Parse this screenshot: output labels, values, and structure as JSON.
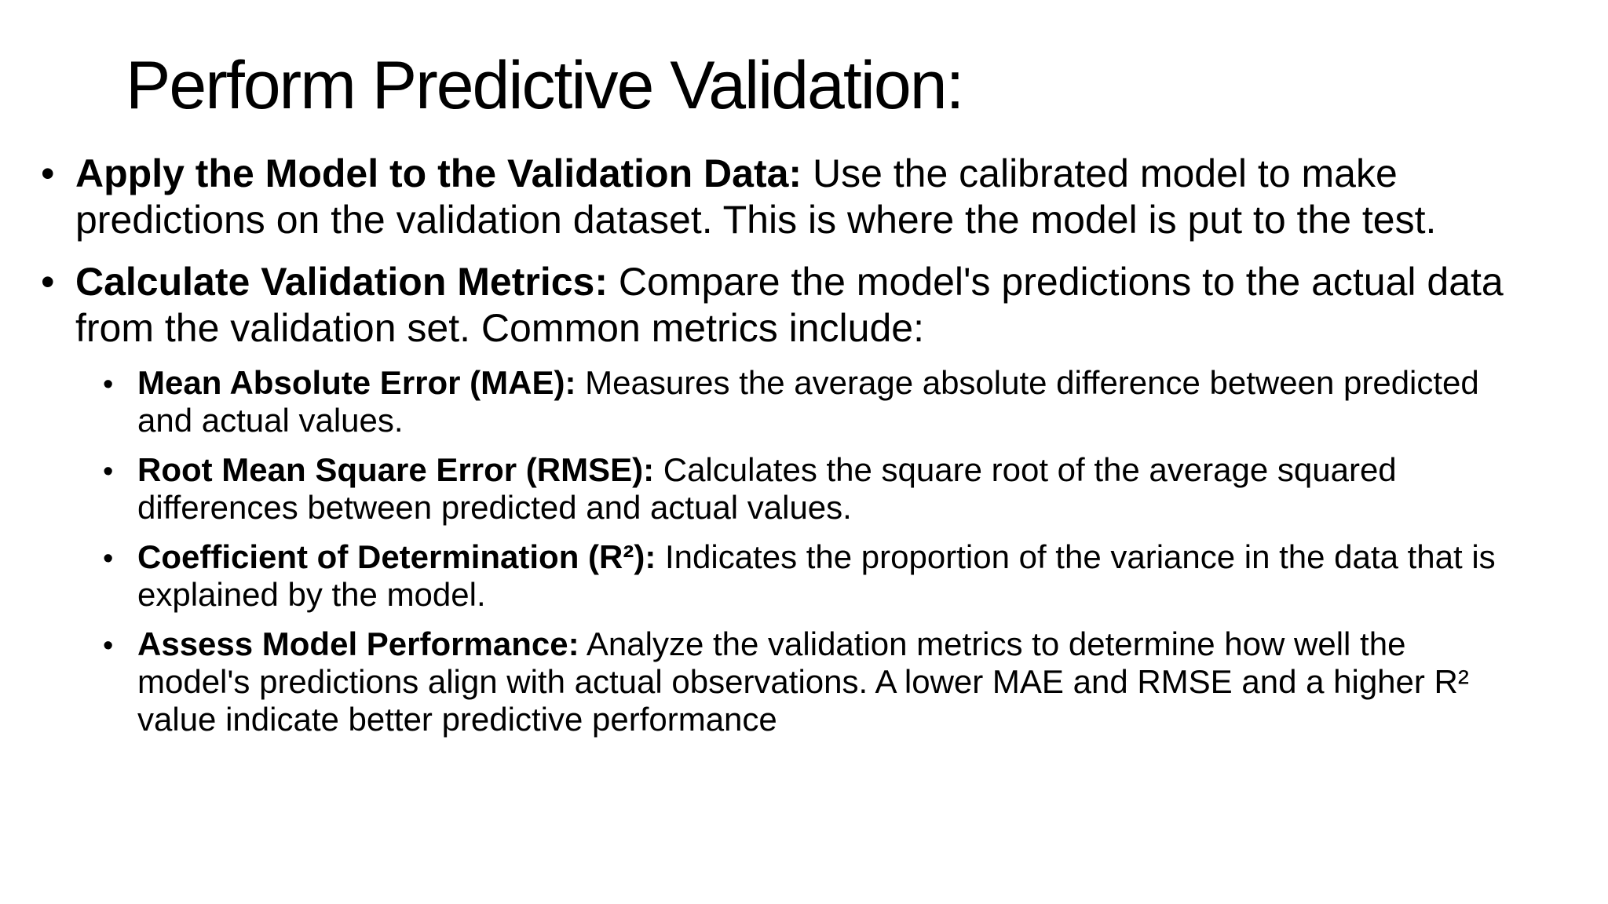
{
  "slide": {
    "title": "Perform Predictive Validation:",
    "bullet_char": "•",
    "items": [
      {
        "label": "Apply the Model to the Validation Data:",
        "text": " Use the calibrated model to make predictions on the validation dataset. This is where the model is put to the test."
      },
      {
        "label": "Calculate Validation Metrics:",
        "text": " Compare the model's predictions to the actual data from the validation set. Common metrics include:"
      }
    ],
    "subitems": [
      {
        "label": "Mean Absolute Error (MAE):",
        "text": " Measures the average absolute difference between predicted and actual values."
      },
      {
        "label": "Root Mean Square Error (RMSE):",
        "text": " Calculates the square root of the average squared differences between predicted and actual values."
      },
      {
        "label": "Coefficient of Determination (R²):",
        "text": " Indicates the proportion of the variance in the data that is explained by the model."
      },
      {
        "label": "Assess Model Performance:",
        "text": " Analyze the validation metrics to determine how well the model's predictions align with actual observations. A lower MAE and RMSE and a higher R² value indicate better predictive performance"
      }
    ]
  }
}
